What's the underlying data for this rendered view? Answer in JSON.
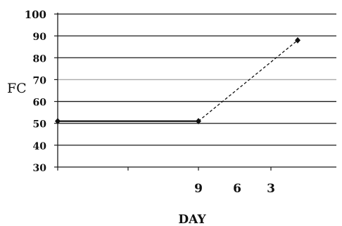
{
  "chart_data": {
    "type": "line",
    "title": "",
    "xlabel": "DAY",
    "ylabel": "FC",
    "ylim": [
      30,
      100
    ],
    "y_ticks": [
      30,
      40,
      50,
      60,
      70,
      80,
      90,
      100
    ],
    "x_tick_labels": [
      "9",
      "6",
      "3"
    ],
    "grid": "horizontal",
    "series": [
      {
        "style": "solid",
        "color": "#111111",
        "points": [
          {
            "x": "start",
            "y": 51
          },
          {
            "x": "9",
            "y": 51
          }
        ]
      },
      {
        "style": "dashed",
        "color": "#111111",
        "points": [
          {
            "x": "9",
            "y": 51
          },
          {
            "x": "beyond 3",
            "y": 88
          }
        ]
      }
    ]
  }
}
